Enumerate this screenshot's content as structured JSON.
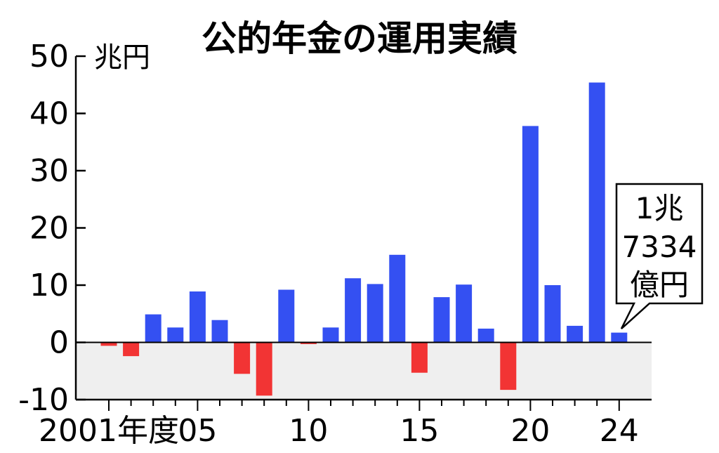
{
  "chart_data": {
    "type": "bar",
    "title": "公的年金の運用実績",
    "ylabel": "兆円",
    "ylim": [
      -10,
      50
    ],
    "y_ticks": [
      "50",
      "40",
      "30",
      "20",
      "10",
      "0",
      "-10"
    ],
    "x_tick_labels": [
      "2001年度",
      "05",
      "10",
      "15",
      "20",
      "24"
    ],
    "categories": [
      "2001",
      "2002",
      "2003",
      "2004",
      "2005",
      "2006",
      "2007",
      "2008",
      "2009",
      "2010",
      "2011",
      "2012",
      "2013",
      "2014",
      "2015",
      "2016",
      "2017",
      "2018",
      "2019",
      "2020",
      "2021",
      "2022",
      "2023",
      "2024"
    ],
    "values": [
      -0.6,
      -2.4,
      4.9,
      2.6,
      8.9,
      3.9,
      -5.5,
      -9.3,
      9.2,
      -0.3,
      2.6,
      11.2,
      10.2,
      15.3,
      -5.3,
      7.9,
      10.1,
      2.4,
      -8.3,
      37.8,
      10.0,
      2.9,
      45.4,
      1.7
    ],
    "colors": {
      "positive": "#3450f2",
      "negative": "#f23434",
      "negative_band": "#efefef",
      "axis": "#000000"
    },
    "grid": false,
    "callout": {
      "lines": [
        "1兆",
        "7334",
        "億円"
      ],
      "target": "2024"
    }
  }
}
